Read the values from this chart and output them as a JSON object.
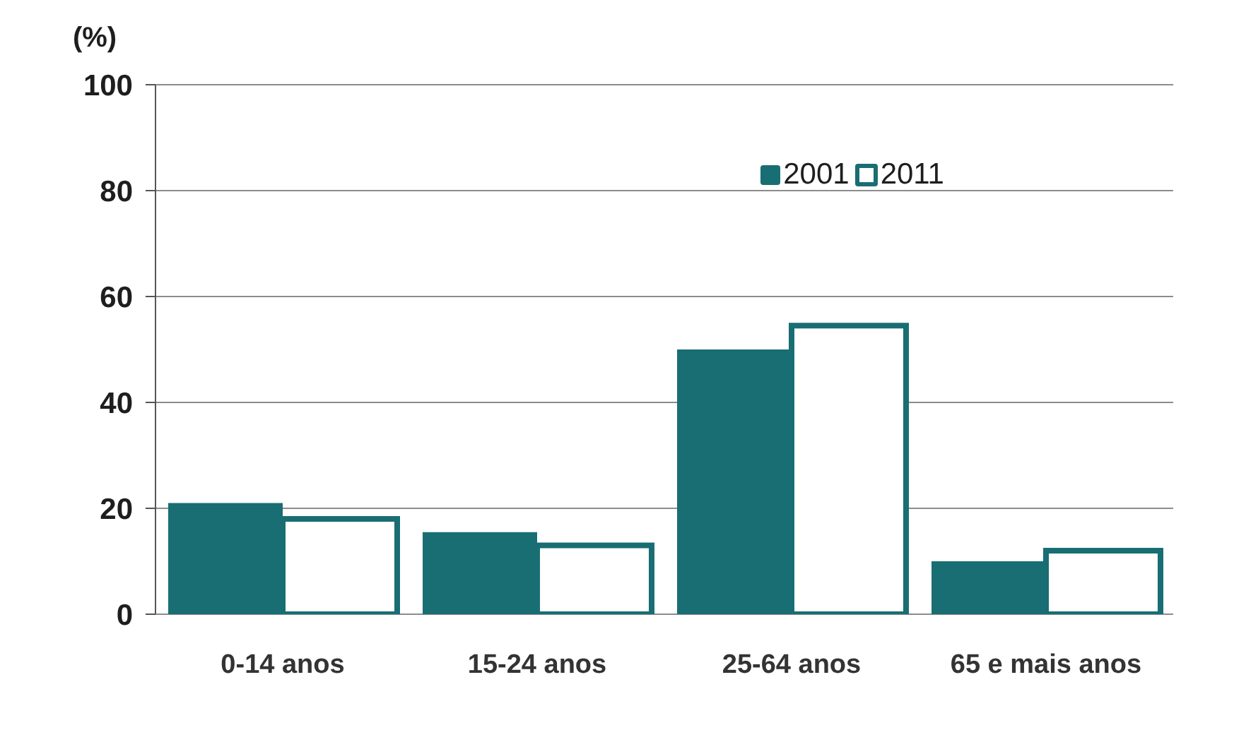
{
  "chart_data": {
    "type": "bar",
    "ylabel": "(%)",
    "categories": [
      "0-14 anos",
      "15-24 anos",
      "25-64 anos",
      "65 e mais anos"
    ],
    "series": [
      {
        "name": "2001",
        "color": "#186e73",
        "values": [
          21,
          15.5,
          50,
          10
        ]
      },
      {
        "name": "2011",
        "color": "#186e73",
        "values": [
          18,
          13,
          54.5,
          12
        ]
      }
    ],
    "ylim": [
      0,
      100
    ],
    "yticks": [
      0,
      20,
      40,
      60,
      80,
      100
    ],
    "grid": "y",
    "legend": "top right"
  }
}
